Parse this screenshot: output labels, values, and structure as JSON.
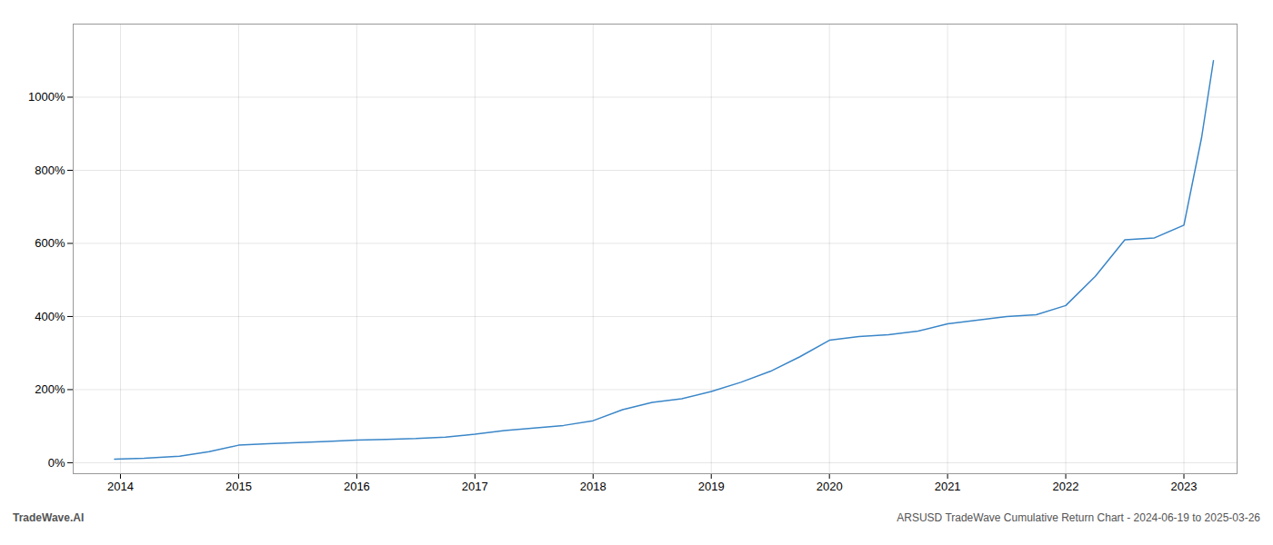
{
  "chart_data": {
    "type": "line",
    "x": [
      2013.95,
      2014.2,
      2014.5,
      2014.75,
      2015.0,
      2015.25,
      2015.5,
      2015.75,
      2016.0,
      2016.25,
      2016.5,
      2016.75,
      2017.0,
      2017.25,
      2017.5,
      2017.75,
      2018.0,
      2018.25,
      2018.5,
      2018.75,
      2019.0,
      2019.25,
      2019.5,
      2019.75,
      2020.0,
      2020.25,
      2020.5,
      2020.75,
      2021.0,
      2021.25,
      2021.5,
      2021.75,
      2022.0,
      2022.25,
      2022.5,
      2022.75,
      2023.0,
      2023.15,
      2023.25
    ],
    "values": [
      10,
      12,
      18,
      30,
      48,
      52,
      55,
      58,
      62,
      64,
      66,
      70,
      78,
      88,
      95,
      102,
      115,
      145,
      165,
      175,
      195,
      220,
      250,
      290,
      335,
      345,
      350,
      360,
      380,
      390,
      400,
      405,
      430,
      510,
      610,
      615,
      650,
      890,
      1100
    ],
    "color": "#3a86c8",
    "xlim": [
      2013.6,
      2023.45
    ],
    "xticks": [
      2014,
      2015,
      2016,
      2017,
      2018,
      2019,
      2020,
      2021,
      2022,
      2023
    ],
    "ylim": [
      -30,
      1200
    ],
    "yticks": [
      {
        "value": 0,
        "label": "0%"
      },
      {
        "value": 200,
        "label": "200%"
      },
      {
        "value": 400,
        "label": "400%"
      },
      {
        "value": 600,
        "label": "600%"
      },
      {
        "value": 800,
        "label": "800%"
      },
      {
        "value": 1000,
        "label": "1000%"
      }
    ],
    "grid": true,
    "annotations": [
      "TradeWave.AI",
      "ARSUSD TradeWave Cumulative Return Chart - 2024-06-19 to 2025-03-26"
    ]
  }
}
